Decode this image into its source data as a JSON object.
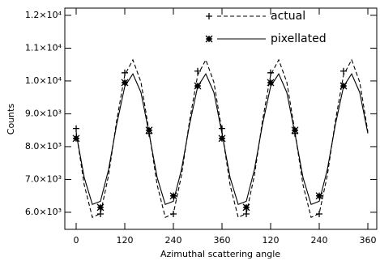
{
  "chart_data": {
    "type": "line",
    "x_label": "Azimuthal scattering angle",
    "y_label": "Counts",
    "xlim": [
      -28,
      742
    ],
    "ylim": [
      5480,
      12220
    ],
    "xticks": [
      0,
      120,
      240,
      360,
      {
        "value": 480,
        "label": "120"
      },
      {
        "value": 600,
        "label": "240"
      },
      {
        "value": 720,
        "label": "360"
      }
    ],
    "yticks": [
      {
        "value": 6000,
        "label": "6.0×10³"
      },
      {
        "value": 7000,
        "label": "7.0×10³"
      },
      {
        "value": 8000,
        "label": "8.0×10³"
      },
      {
        "value": 9000,
        "label": "9.0×10³"
      },
      {
        "value": 10000,
        "label": "1.0×10⁴"
      },
      {
        "value": 11000,
        "label": "1.1×10⁴"
      },
      {
        "value": 12000,
        "label": "1.2×10⁴"
      }
    ],
    "legend": "upper right",
    "x": [
      0,
      60,
      120,
      180,
      240,
      300,
      360,
      420,
      480,
      540,
      600,
      660
    ],
    "curve_x": [
      0,
      20,
      40,
      60,
      80,
      100,
      120,
      140,
      160,
      180,
      200,
      220,
      240,
      260,
      280,
      300,
      320,
      340,
      360,
      380,
      400,
      420,
      440,
      460,
      480,
      500,
      520,
      540,
      560,
      580,
      600,
      620,
      640,
      660,
      680,
      700,
      720
    ],
    "series": [
      {
        "name": "actual",
        "color": "#000000",
        "text_color": "#666666",
        "dashed": true,
        "marker": "plus",
        "values": [
          8550,
          5950,
          10250,
          8400,
          5950,
          10300,
          8550,
          5950,
          10250,
          8400,
          5950,
          10300
        ],
        "curve": [
          8456,
          6830,
          5845,
          5962,
          7126,
          8793,
          10182,
          10644,
          9962,
          8456,
          6830,
          5845,
          5962,
          7126,
          8793,
          10182,
          10644,
          9962,
          8456,
          6830,
          5845,
          5962,
          7126,
          8793,
          10182,
          10644,
          9962,
          8456,
          6830,
          5845,
          5962,
          7126,
          8793,
          10182,
          10644,
          9962,
          8456
        ]
      },
      {
        "name": "pixellated",
        "color": "#000000",
        "text_color": "#000000",
        "dashed": false,
        "marker": "star",
        "values": [
          8250,
          6150,
          9950,
          8500,
          6500,
          9850,
          8250,
          6150,
          9950,
          8500,
          6500,
          9850
        ],
        "curve": [
          8402,
          7055,
          6239,
          6336,
          7300,
          8681,
          9832,
          10215,
          9650,
          8402,
          7055,
          6239,
          6336,
          7300,
          8681,
          9832,
          10215,
          9650,
          8402,
          7055,
          6239,
          6336,
          7300,
          8681,
          9832,
          10215,
          9650,
          8402,
          7055,
          6239,
          6336,
          7300,
          8681,
          9832,
          10215,
          9650,
          8402
        ]
      }
    ]
  }
}
